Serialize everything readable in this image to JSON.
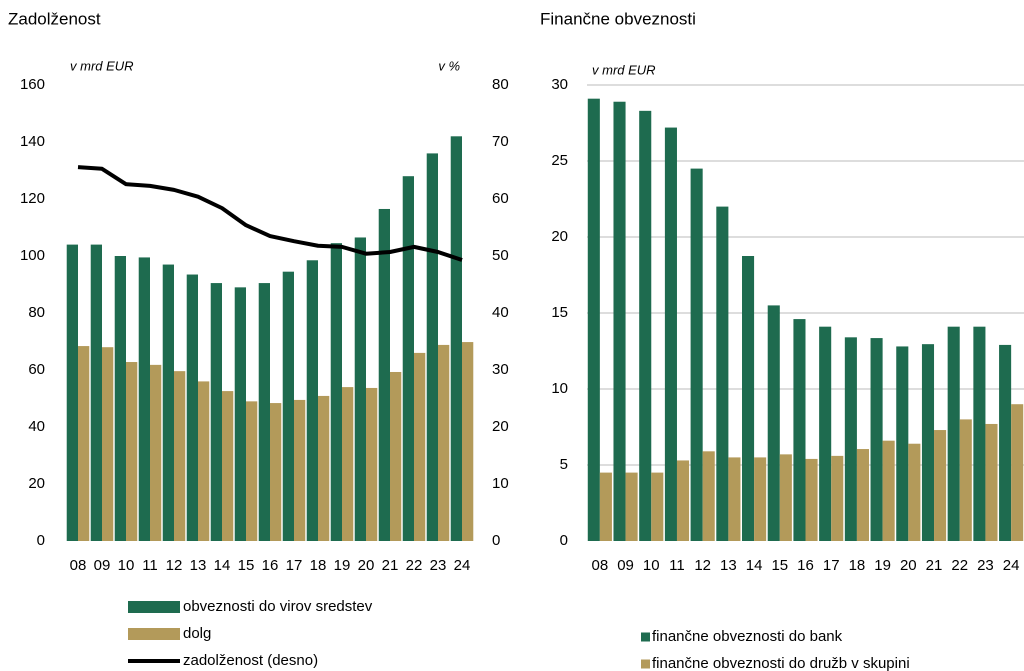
{
  "chart_data": [
    {
      "type": "bar",
      "title": "Zadolženost",
      "y_label": "v mrd EUR",
      "y2_label": "v %",
      "categories": [
        "08",
        "09",
        "10",
        "11",
        "12",
        "13",
        "14",
        "15",
        "16",
        "17",
        "18",
        "19",
        "20",
        "21",
        "22",
        "23",
        "24"
      ],
      "series": [
        {
          "name": "obveznosti do virov sredstev",
          "color": "#1e6b4f",
          "type": "bar",
          "values": [
            104,
            104,
            100,
            99.5,
            97,
            93.5,
            90.5,
            89,
            90.5,
            94.5,
            98.5,
            104.5,
            106.5,
            116.5,
            128,
            136,
            142
          ]
        },
        {
          "name": "dolg",
          "color": "#b39a5a",
          "type": "bar",
          "values": [
            68.4,
            68,
            62.8,
            61.8,
            59.6,
            56,
            52.6,
            49,
            48.4,
            49.5,
            50.9,
            54,
            53.7,
            59.3,
            66,
            68.8,
            69.8
          ]
        },
        {
          "name": "zadolženost (desno)",
          "color": "#000000",
          "type": "line",
          "axis": "y2",
          "values": [
            65.6,
            65.3,
            62.6,
            62.3,
            61.6,
            60.4,
            58.4,
            55.4,
            53.5,
            52.6,
            51.8,
            51.6,
            50.4,
            50.7,
            51.6,
            50.7,
            49.3
          ]
        }
      ],
      "ylim": [
        0,
        160
      ],
      "yticks": [
        0,
        20,
        40,
        60,
        80,
        100,
        120,
        140,
        160
      ],
      "y2lim": [
        0,
        80
      ],
      "y2ticks": [
        0,
        10,
        20,
        30,
        40,
        50,
        60,
        70,
        80
      ],
      "grid": false
    },
    {
      "type": "bar",
      "title": "Finančne obveznosti",
      "y_label": "v mrd EUR",
      "categories": [
        "08",
        "09",
        "10",
        "11",
        "12",
        "13",
        "14",
        "15",
        "16",
        "17",
        "18",
        "19",
        "20",
        "21",
        "22",
        "23",
        "24"
      ],
      "series": [
        {
          "name": "finančne obveznosti do bank",
          "color": "#1e6b4f",
          "type": "bar",
          "values": [
            29.1,
            28.9,
            28.3,
            27.2,
            24.5,
            22,
            18.75,
            15.5,
            14.6,
            14.1,
            13.4,
            13.35,
            12.8,
            12.95,
            14.1,
            14.1,
            12.9
          ]
        },
        {
          "name": "finančne obveznosti do družb v skupini",
          "color": "#b39a5a",
          "type": "bar",
          "values": [
            4.5,
            4.5,
            4.5,
            5.3,
            5.9,
            5.5,
            5.5,
            5.7,
            5.4,
            5.6,
            6.05,
            6.6,
            6.4,
            7.3,
            8,
            7.7,
            9
          ]
        }
      ],
      "ylim": [
        0,
        30
      ],
      "yticks": [
        0,
        5,
        10,
        15,
        20,
        25,
        30
      ],
      "grid": true
    }
  ]
}
